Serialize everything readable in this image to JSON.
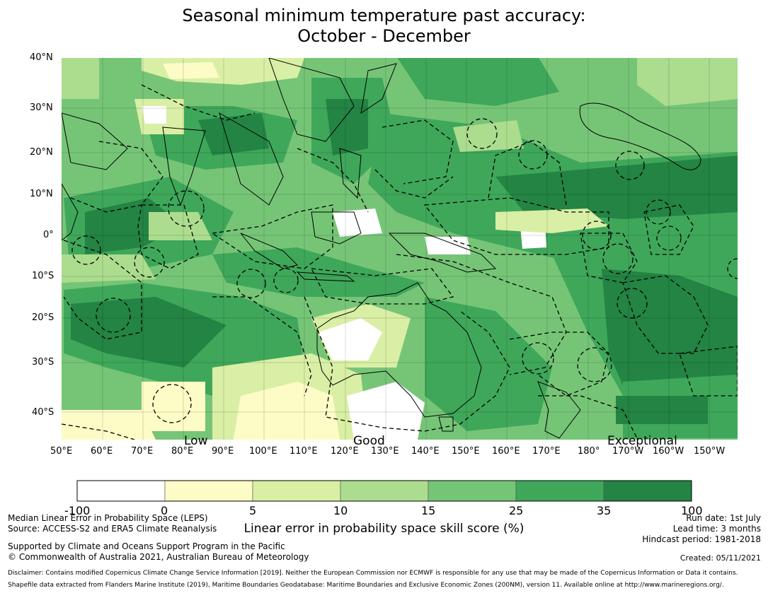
{
  "title_line1": "Seasonal minimum temperature past accuracy:",
  "title_line2": "October - December",
  "lat_labels": [
    "40°N",
    "30°N",
    "20°N",
    "10°N",
    "0°",
    "10°S",
    "20°S",
    "30°S",
    "40°S"
  ],
  "lon_labels": [
    "50°E",
    "60°E",
    "70°E",
    "80°E",
    "90°E",
    "100°E",
    "110°E",
    "120°E",
    "130°E",
    "140°E",
    "150°E",
    "160°E",
    "170°E",
    "180°",
    "170°W",
    "160°W",
    "150°W"
  ],
  "skill_labels": {
    "low": "Low",
    "good": "Good",
    "exceptional": "Exceptional"
  },
  "colorbar": {
    "ticks": [
      "-100",
      "0",
      "5",
      "10",
      "15",
      "25",
      "35",
      "100"
    ],
    "colors": [
      "#ffffff",
      "#fdfcc6",
      "#d9efa5",
      "#acdc8e",
      "#76c577",
      "#3fa75a",
      "#238443"
    ],
    "label": "Linear error in probability space skill score (%)"
  },
  "footer": {
    "line1": "Median Linear Error in Probability Space (LEPS)",
    "line2": "Source: ACCESS-S2 and ERA5 Climate Reanalysis",
    "line3": "Supported by Climate and Oceans Support Program in the Pacific",
    "line4": "© Commonwealth of Australia 2021, Australian Bureau of Meteorology",
    "run_date": "Run date: 1st July",
    "lead_time": "Lead time: 3 months",
    "hindcast": "Hindcast period: 1981-2018",
    "created": "Created: 05/11/2021",
    "disclaimer1": "Disclaimer: Contains modified Copernicus Climate Change Service Information [2019]. Neither the European Commission nor ECMWF is responsible for any use that may be made of the Copernicus Information or Data it contains.",
    "disclaimer2": "Shapefile data extracted from Flanders Marine Institute (2019), Maritime Boundaries Geodatabase: Maritime Boundaries and Exclusive Economic Zones (200NM), version 11. Available online at http://www.marineregions.org/."
  }
}
